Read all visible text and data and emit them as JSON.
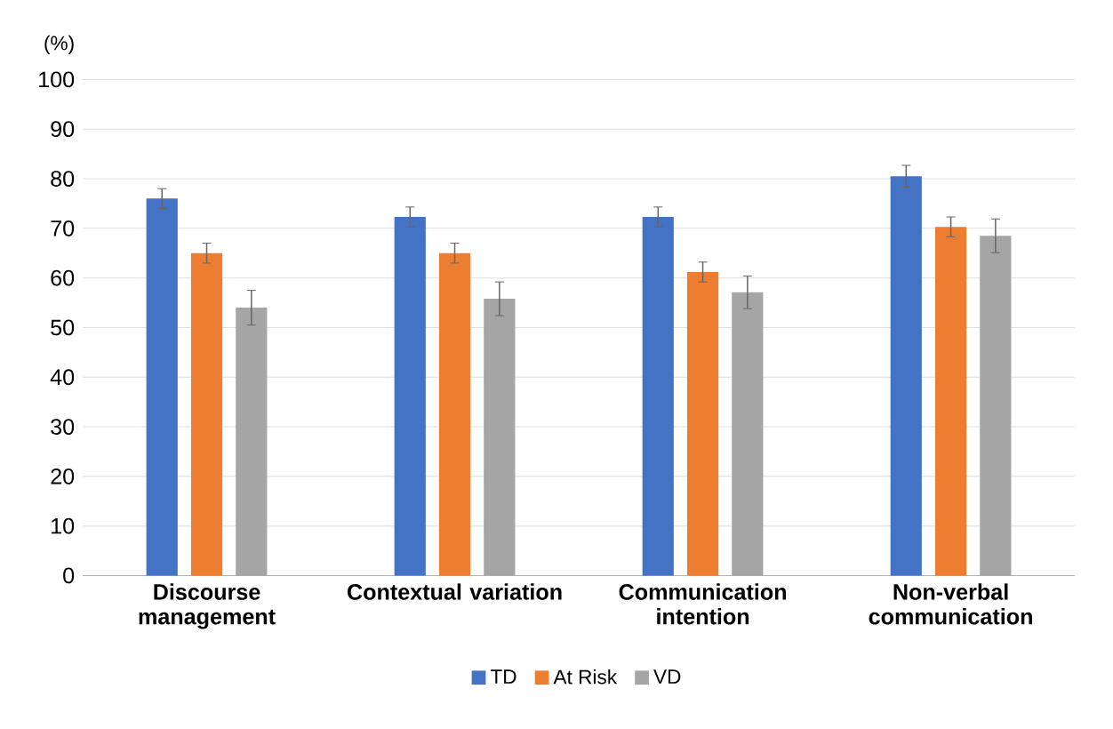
{
  "chart_data": {
    "type": "bar",
    "ylabel": "(%)",
    "categories": [
      "Discourse management",
      "Contextual variation",
      "Communication intention",
      "Non-verbal communication"
    ],
    "series": [
      {
        "name": "TD",
        "color": "#4472c4",
        "values": [
          76,
          72.3,
          72.3,
          80.5
        ],
        "errors": [
          2,
          2,
          2,
          2.2
        ]
      },
      {
        "name": "At Risk",
        "color": "#ed7d31",
        "values": [
          65,
          65,
          61.2,
          70.3
        ],
        "errors": [
          2,
          2,
          2,
          2
        ]
      },
      {
        "name": "VD",
        "color": "#a5a5a5",
        "values": [
          54,
          55.8,
          57.1,
          68.5
        ],
        "errors": [
          3.5,
          3.4,
          3.3,
          3.4
        ]
      }
    ],
    "ylim": [
      0,
      100
    ],
    "yticks": [
      0,
      10,
      20,
      30,
      40,
      50,
      60,
      70,
      80,
      90,
      100
    ],
    "grid": "y",
    "legend": "bottom"
  }
}
